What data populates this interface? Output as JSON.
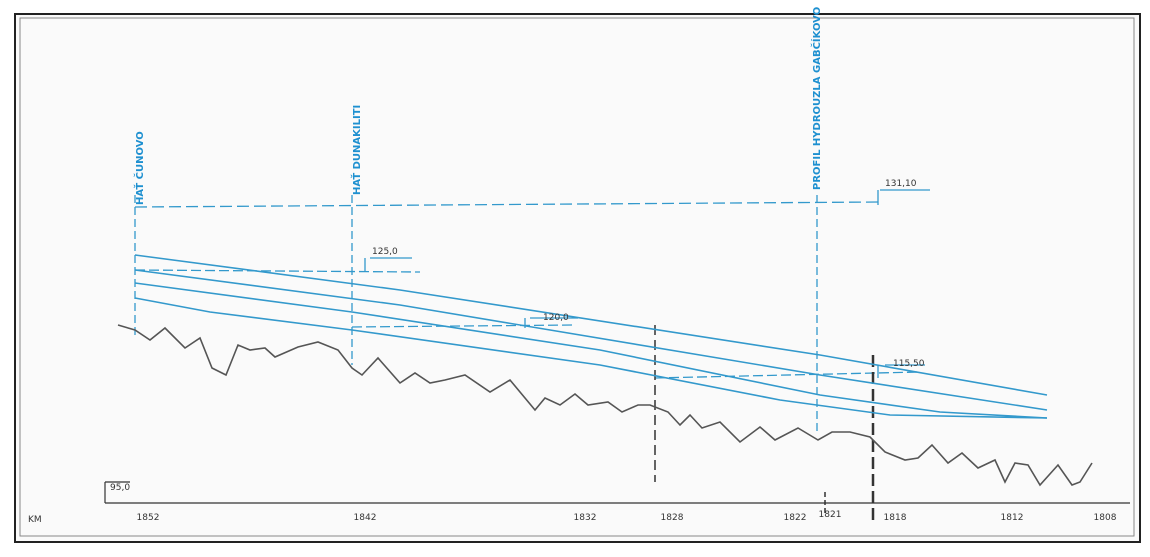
{
  "labels": {
    "dam_cunovo": "HAŤ ČUNOVO",
    "dam_dunakiliti": "HAŤ DUNAKILITI",
    "profile_gabcikovo": "PROFIL HYDROUZLA GABČÍKOVO"
  },
  "levels": {
    "top": "131,10",
    "cunovo": "125,0",
    "dunakiliti": "120,0",
    "gabcikovo": "115,50",
    "datum": "95,0"
  },
  "axis": {
    "unit": "KM",
    "ticks": [
      "1852",
      "1842",
      "1832",
      "1828",
      "1822",
      "1821",
      "1818",
      "1812",
      "1808"
    ]
  }
}
